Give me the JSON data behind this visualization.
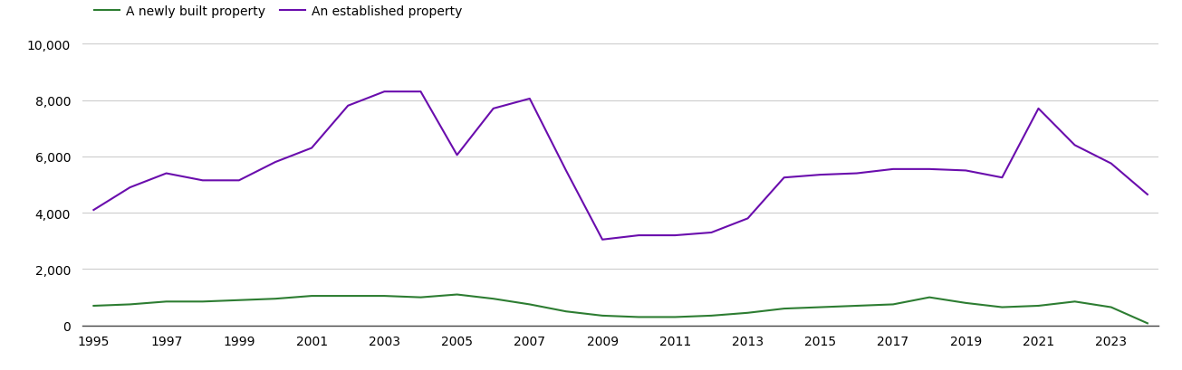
{
  "years": [
    1995,
    1996,
    1997,
    1998,
    1999,
    2000,
    2001,
    2002,
    2003,
    2004,
    2005,
    2006,
    2007,
    2008,
    2009,
    2010,
    2011,
    2012,
    2013,
    2014,
    2015,
    2016,
    2017,
    2018,
    2019,
    2020,
    2021,
    2022,
    2023,
    2024
  ],
  "new_homes": [
    700,
    750,
    850,
    850,
    900,
    950,
    1050,
    1050,
    1050,
    1000,
    1100,
    950,
    750,
    500,
    350,
    300,
    300,
    350,
    450,
    600,
    650,
    700,
    750,
    1000,
    800,
    650,
    700,
    850,
    650,
    80
  ],
  "established_homes": [
    4100,
    4900,
    5400,
    5150,
    5150,
    5800,
    6300,
    7800,
    8300,
    8300,
    6050,
    7700,
    8050,
    5500,
    3050,
    3200,
    3200,
    3300,
    3800,
    5250,
    5350,
    5400,
    5550,
    5550,
    5500,
    5250,
    7700,
    6400,
    5750,
    4650
  ],
  "new_color": "#2d7d32",
  "established_color": "#6a0dad",
  "background_color": "#ffffff",
  "plot_bg_color": "#ffffff",
  "grid_color": "#cccccc",
  "legend_new": "A newly built property",
  "legend_established": "An established property",
  "ylim": [
    0,
    10000
  ],
  "yticks": [
    0,
    2000,
    4000,
    6000,
    8000,
    10000
  ],
  "xtick_start": 1995,
  "xtick_step": 2,
  "line_width": 1.5,
  "tick_fontsize": 10,
  "legend_fontsize": 10
}
